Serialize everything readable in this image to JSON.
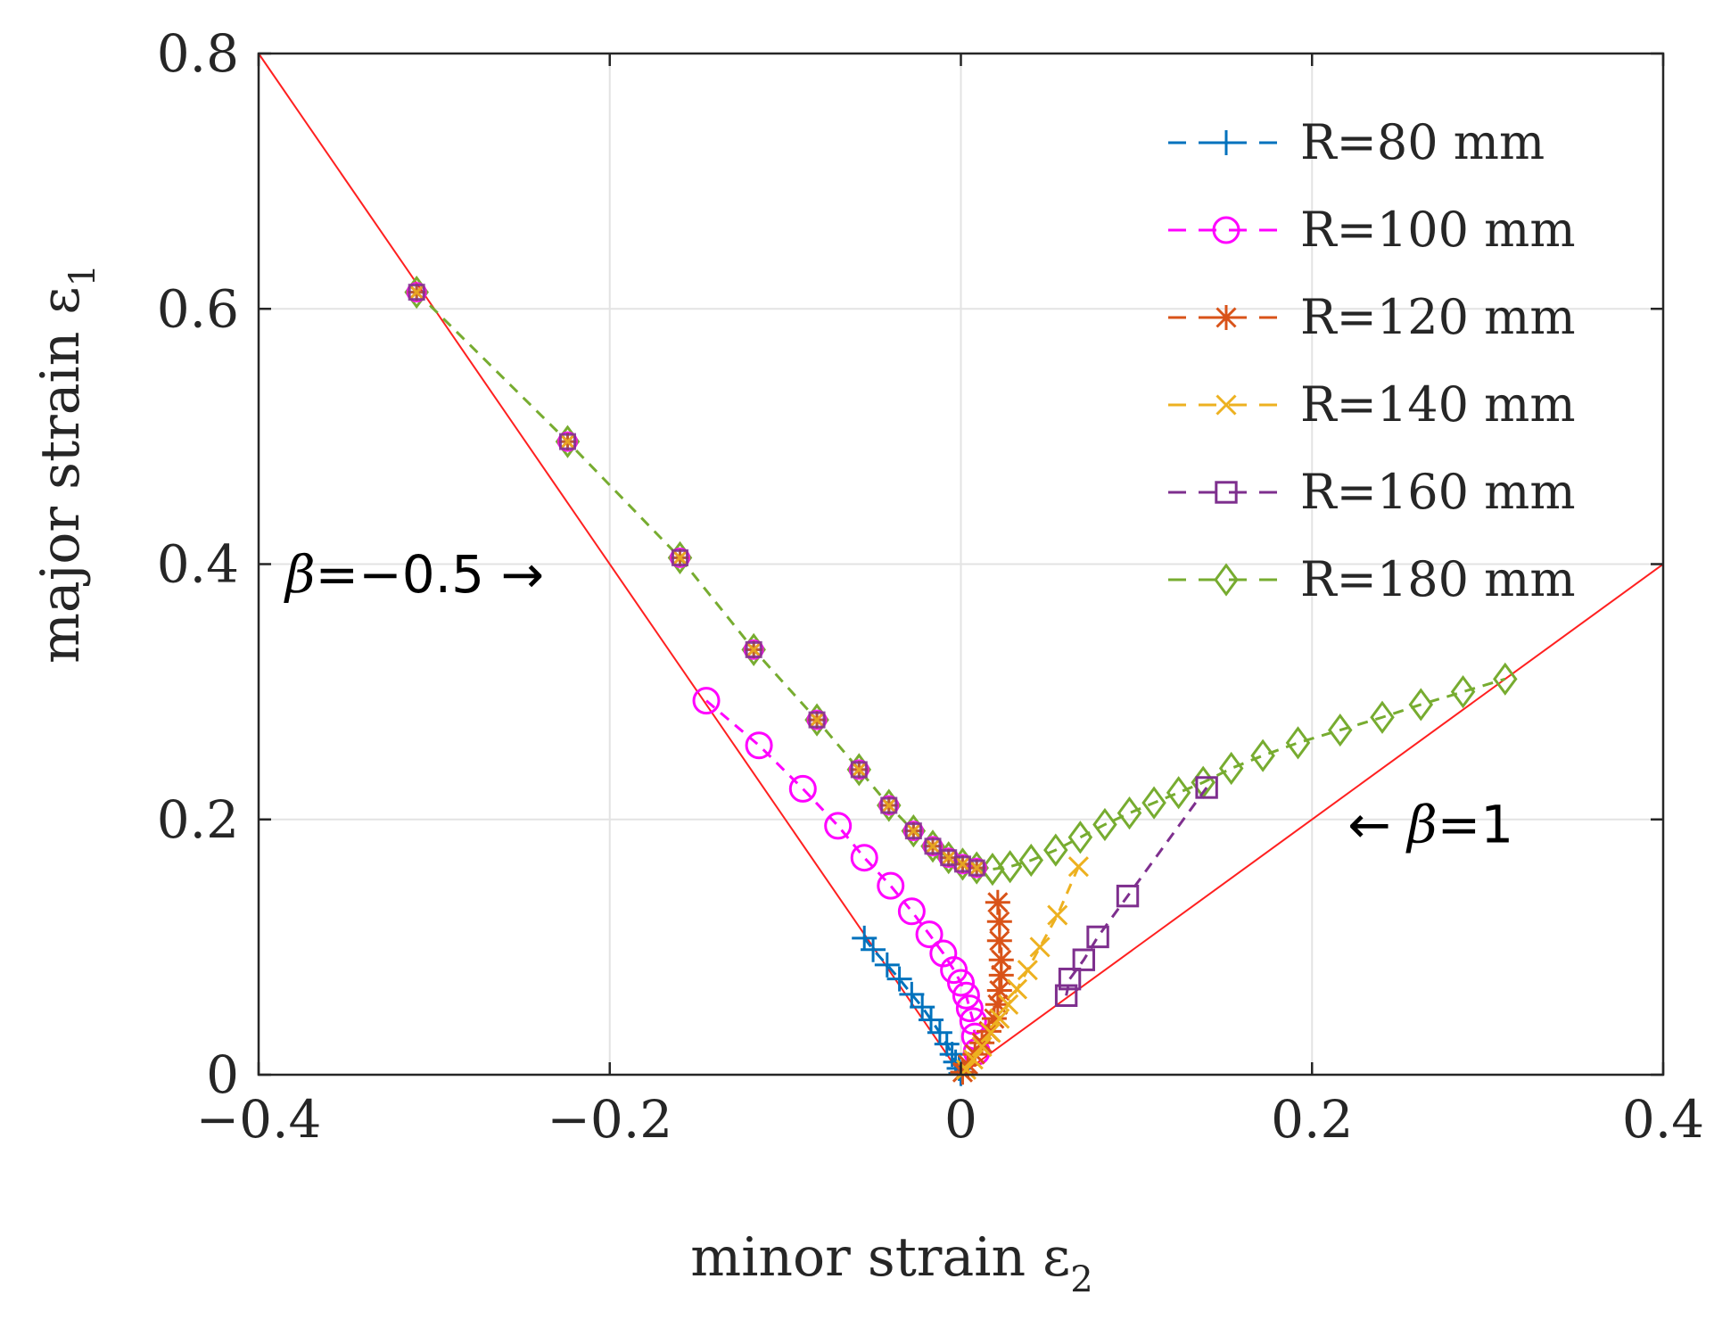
{
  "chart_data": {
    "type": "line",
    "title": "",
    "xlabel": "minor strain ε",
    "xlabel_sub": "2",
    "ylabel": "major strain ε",
    "ylabel_sub": "1",
    "xlim": [
      -0.4,
      0.4
    ],
    "ylim": [
      0,
      0.8
    ],
    "xticks": [
      -0.4,
      -0.2,
      0,
      0.2,
      0.4
    ],
    "xtick_labels": [
      "−0.4",
      "−0.2",
      "0",
      "0.2",
      "0.4"
    ],
    "yticks": [
      0,
      0.2,
      0.4,
      0.6,
      0.8
    ],
    "ytick_labels": [
      "0",
      "0.2",
      "0.4",
      "0.6",
      "0.8"
    ],
    "grid": true,
    "legend_position": "top-right",
    "colors": {
      "boundary": "#ff2020",
      "grid": "#e3e3e3",
      "axis": "#262626"
    },
    "boundary_lines": [
      {
        "name": "beta=-0.5",
        "x": [
          -0.4,
          0
        ],
        "y": [
          0.8,
          0
        ]
      },
      {
        "name": "beta=1",
        "x": [
          0,
          0.4
        ],
        "y": [
          0,
          0.4
        ]
      }
    ],
    "annotations": [
      {
        "symbol": "β",
        "text": "=−0.5 →",
        "x": -0.4,
        "y": 0.392,
        "anchor": "start"
      },
      {
        "arrow": "← ",
        "symbol": "β",
        "text": "=1",
        "x": 0.205,
        "y": 0.196,
        "anchor": "start"
      }
    ],
    "series": [
      {
        "name": "R=80 mm",
        "color": "#0072bd",
        "marker": "plus",
        "x": [
          -0.055,
          -0.05,
          -0.042,
          -0.035,
          -0.028,
          -0.022,
          -0.017,
          -0.012,
          -0.008,
          -0.005,
          -0.003,
          -0.001,
          0
        ],
        "y": [
          0.107,
          0.098,
          0.086,
          0.075,
          0.063,
          0.053,
          0.043,
          0.033,
          0.024,
          0.016,
          0.01,
          0.005,
          0.001
        ]
      },
      {
        "name": "R=100 mm",
        "color": "#ff00ff",
        "marker": "circle",
        "x": [
          -0.145,
          -0.115,
          -0.09,
          -0.07,
          -0.055,
          -0.04,
          -0.028,
          -0.018,
          -0.01,
          -0.004,
          0,
          0.003,
          0.005,
          0.007,
          0.008,
          0.009
        ],
        "y": [
          0.293,
          0.258,
          0.224,
          0.195,
          0.17,
          0.148,
          0.128,
          0.11,
          0.095,
          0.082,
          0.072,
          0.062,
          0.052,
          0.042,
          0.03,
          0.018
        ]
      },
      {
        "name": "R=120 mm",
        "color": "#d95319",
        "marker": "asterisk",
        "x": [
          0.021,
          0.022,
          0.022,
          0.023,
          0.023,
          0.022,
          0.021,
          0.019,
          0.016,
          0.012,
          0.008,
          0.004,
          0.001
        ],
        "y": [
          0.135,
          0.12,
          0.105,
          0.09,
          0.078,
          0.066,
          0.055,
          0.044,
          0.034,
          0.025,
          0.016,
          0.008,
          0.002
        ]
      },
      {
        "name": "R=140 mm",
        "color": "#edb120",
        "marker": "x",
        "x": [
          0.067,
          0.055,
          0.045,
          0.038,
          0.032,
          0.027,
          0.022,
          0.017,
          0.012,
          0.007,
          0.003
        ],
        "y": [
          0.163,
          0.125,
          0.1,
          0.082,
          0.067,
          0.055,
          0.044,
          0.033,
          0.022,
          0.012,
          0.004
        ]
      },
      {
        "name": "R=160 mm",
        "color": "#7e2f8e",
        "marker": "square",
        "x": [
          0.14,
          0.095,
          0.078,
          0.07,
          0.062,
          0.06
        ],
        "y": [
          0.225,
          0.14,
          0.108,
          0.09,
          0.075,
          0.062
        ]
      },
      {
        "name": "R=180 mm",
        "color": "#77ac30",
        "marker": "diamond",
        "x": [
          -0.31,
          -0.224,
          -0.16,
          -0.118,
          -0.082,
          -0.058,
          -0.041,
          -0.027,
          -0.016,
          -0.007,
          0.001,
          0.009,
          0.018,
          0.028,
          0.04,
          0.054,
          0.068,
          0.082,
          0.096,
          0.11,
          0.124,
          0.138,
          0.154,
          0.172,
          0.192,
          0.216,
          0.24,
          0.262,
          0.286,
          0.31
        ],
        "y": [
          0.613,
          0.496,
          0.405,
          0.333,
          0.278,
          0.239,
          0.211,
          0.191,
          0.179,
          0.17,
          0.165,
          0.162,
          0.161,
          0.163,
          0.168,
          0.176,
          0.186,
          0.196,
          0.205,
          0.213,
          0.221,
          0.229,
          0.24,
          0.25,
          0.26,
          0.27,
          0.28,
          0.29,
          0.3,
          0.31
        ]
      }
    ]
  }
}
